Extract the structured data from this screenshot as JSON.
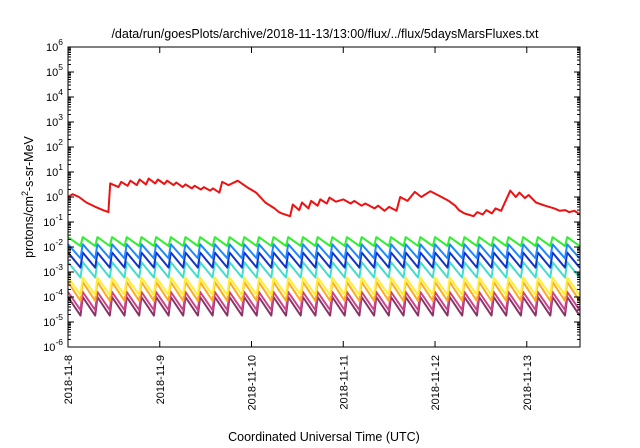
{
  "chart_data": {
    "type": "line",
    "title": "/data/run/goesPlots/archive/2018-11-13/13:00/flux/../flux/5daysMarsFluxes.txt",
    "xlabel": "Coordinated Universal Time (UTC)",
    "ylabel": {
      "base": "protons/cm",
      "sup": "2",
      "rest": "-s-sr-MeV"
    },
    "y_scale": "log",
    "ylim_exp": [
      -6,
      6
    ],
    "y_ticks": [
      {
        "base": "10",
        "exp": "-6"
      },
      {
        "base": "10",
        "exp": "-5"
      },
      {
        "base": "10",
        "exp": "-4"
      },
      {
        "base": "10",
        "exp": "-3"
      },
      {
        "base": "10",
        "exp": "-2"
      },
      {
        "base": "10",
        "exp": "-1"
      },
      {
        "base": "10",
        "exp": "0"
      },
      {
        "base": "10",
        "exp": "1"
      },
      {
        "base": "10",
        "exp": "2"
      },
      {
        "base": "10",
        "exp": "3"
      },
      {
        "base": "10",
        "exp": "4"
      },
      {
        "base": "10",
        "exp": "5"
      },
      {
        "base": "10",
        "exp": "6"
      }
    ],
    "x_ticks": [
      "2018-11-8",
      "2018-11-9",
      "2018-11-10",
      "2018-11-11",
      "2018-11-12",
      "2018-11-13"
    ],
    "x_range_days": [
      0,
      5.58
    ],
    "grid": false,
    "legend": "none",
    "series": [
      {
        "color": "#ee1111",
        "x": [
          0.0,
          0.05,
          0.12,
          0.2,
          0.3,
          0.38,
          0.44,
          0.46,
          0.55,
          0.58,
          0.65,
          0.68,
          0.75,
          0.78,
          0.85,
          0.88,
          0.95,
          0.98,
          1.05,
          1.08,
          1.15,
          1.18,
          1.25,
          1.28,
          1.35,
          1.38,
          1.45,
          1.48,
          1.55,
          1.58,
          1.65,
          1.68,
          1.75,
          1.85,
          1.95,
          2.05,
          2.15,
          2.25,
          2.3,
          2.33,
          2.42,
          2.45,
          2.52,
          2.55,
          2.62,
          2.65,
          2.72,
          2.75,
          2.82,
          2.85,
          2.92,
          3.0,
          3.08,
          3.12,
          3.2,
          3.24,
          3.34,
          3.38,
          3.45,
          3.5,
          3.58,
          3.62,
          3.7,
          3.78,
          3.85,
          3.95,
          4.05,
          4.15,
          4.22,
          4.26,
          4.32,
          4.36,
          4.42,
          4.46,
          4.52,
          4.56,
          4.62,
          4.66,
          4.72,
          4.82,
          4.88,
          4.92,
          4.98,
          5.02,
          5.1,
          5.2,
          5.3,
          5.36,
          5.42,
          5.46,
          5.52,
          5.58
        ],
        "y": [
          1.0,
          1.3,
          1.0,
          0.6,
          0.4,
          0.3,
          0.25,
          3.5,
          2.5,
          4.0,
          2.8,
          4.5,
          3.0,
          5.0,
          3.2,
          5.5,
          3.5,
          5.0,
          3.3,
          4.5,
          3.0,
          3.8,
          2.5,
          3.2,
          2.2,
          2.8,
          2.0,
          2.5,
          1.8,
          2.2,
          1.5,
          4.0,
          3.0,
          4.5,
          2.5,
          1.5,
          0.6,
          0.35,
          0.25,
          0.22,
          0.17,
          0.5,
          0.3,
          0.6,
          0.35,
          0.7,
          0.45,
          0.8,
          0.55,
          0.95,
          0.65,
          0.8,
          0.55,
          0.7,
          0.45,
          0.55,
          0.35,
          0.45,
          0.28,
          0.4,
          0.28,
          1.0,
          0.7,
          1.6,
          1.0,
          1.7,
          1.1,
          0.7,
          0.45,
          0.3,
          0.22,
          0.2,
          0.17,
          0.25,
          0.2,
          0.3,
          0.22,
          0.35,
          0.28,
          1.8,
          1.0,
          1.5,
          0.9,
          1.2,
          0.6,
          0.45,
          0.35,
          0.28,
          0.3,
          0.25,
          0.28,
          0.2
        ]
      },
      {
        "color": "#33ee33",
        "pattern": "sawtooth",
        "period_days": 0.16,
        "y_min": 0.011,
        "y_max": 0.025
      },
      {
        "color": "#2288ff",
        "pattern": "sawtooth",
        "period_days": 0.16,
        "y_min": 0.0035,
        "y_max": 0.013
      },
      {
        "color": "#1133cc",
        "pattern": "sawtooth",
        "period_days": 0.16,
        "y_min": 0.0015,
        "y_max": 0.006
      },
      {
        "color": "#44ddcc",
        "pattern": "sawtooth",
        "period_days": 0.16,
        "y_min": 0.0006,
        "y_max": 0.0025
      },
      {
        "color": "#ffee33",
        "pattern": "sawtooth",
        "period_days": 0.16,
        "y_min": 0.00012,
        "y_max": 0.0006
      },
      {
        "color": "#ffaa22",
        "pattern": "sawtooth",
        "period_days": 0.16,
        "y_min": 7e-05,
        "y_max": 0.0004
      },
      {
        "color": "#cc4488",
        "pattern": "sawtooth",
        "period_days": 0.16,
        "y_min": 3e-05,
        "y_max": 0.00016
      },
      {
        "color": "#883366",
        "pattern": "sawtooth",
        "period_days": 0.16,
        "y_min": 1.8e-05,
        "y_max": 0.0001
      }
    ]
  }
}
